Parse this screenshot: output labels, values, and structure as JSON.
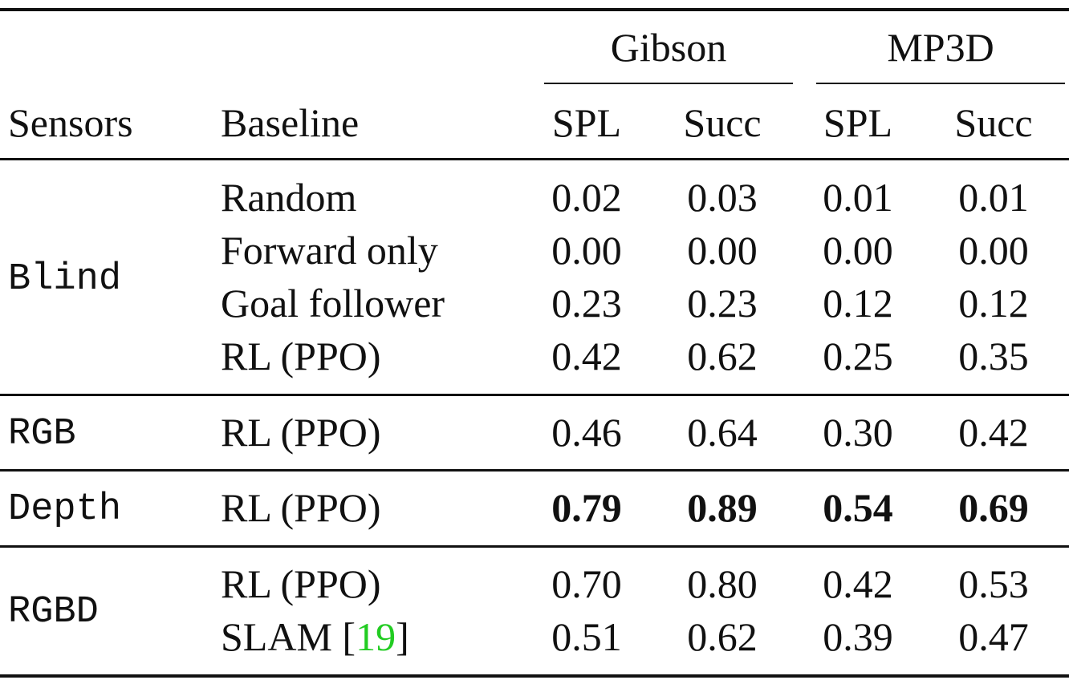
{
  "header": {
    "group1": "Gibson",
    "group2": "MP3D",
    "col_sensors": "Sensors",
    "col_baseline": "Baseline",
    "spl": "SPL",
    "succ": "Succ"
  },
  "groups": [
    {
      "sensor": "Blind",
      "rows": [
        {
          "baseline": "Random",
          "values": [
            "0.02",
            "0.03",
            "0.01",
            "0.01"
          ],
          "bold": false
        },
        {
          "baseline": "Forward only",
          "values": [
            "0.00",
            "0.00",
            "0.00",
            "0.00"
          ],
          "bold": false
        },
        {
          "baseline": "Goal follower",
          "values": [
            "0.23",
            "0.23",
            "0.12",
            "0.12"
          ],
          "bold": false
        },
        {
          "baseline": "RL (PPO)",
          "values": [
            "0.42",
            "0.62",
            "0.25",
            "0.35"
          ],
          "bold": false
        }
      ]
    },
    {
      "sensor": "RGB",
      "rows": [
        {
          "baseline": "RL (PPO)",
          "values": [
            "0.46",
            "0.64",
            "0.30",
            "0.42"
          ],
          "bold": false
        }
      ]
    },
    {
      "sensor": "Depth",
      "rows": [
        {
          "baseline": "RL (PPO)",
          "values": [
            "0.79",
            "0.89",
            "0.54",
            "0.69"
          ],
          "bold": true
        }
      ]
    },
    {
      "sensor": "RGBD",
      "rows": [
        {
          "baseline": "RL (PPO)",
          "values": [
            "0.70",
            "0.80",
            "0.42",
            "0.53"
          ],
          "bold": false
        },
        {
          "baseline": "SLAM [",
          "cite": "19",
          "cite_close": "]",
          "values": [
            "0.51",
            "0.62",
            "0.39",
            "0.47"
          ],
          "bold": false
        }
      ]
    }
  ],
  "chart_data": {
    "type": "table",
    "columns": [
      "Sensors",
      "Baseline",
      "Gibson SPL",
      "Gibson Succ",
      "MP3D SPL",
      "MP3D Succ"
    ],
    "rows": [
      [
        "Blind",
        "Random",
        0.02,
        0.03,
        0.01,
        0.01
      ],
      [
        "Blind",
        "Forward only",
        0.0,
        0.0,
        0.0,
        0.0
      ],
      [
        "Blind",
        "Goal follower",
        0.23,
        0.23,
        0.12,
        0.12
      ],
      [
        "Blind",
        "RL (PPO)",
        0.42,
        0.62,
        0.25,
        0.35
      ],
      [
        "RGB",
        "RL (PPO)",
        0.46,
        0.64,
        0.3,
        0.42
      ],
      [
        "Depth",
        "RL (PPO)",
        0.79,
        0.89,
        0.54,
        0.69
      ],
      [
        "RGBD",
        "RL (PPO)",
        0.7,
        0.8,
        0.42,
        0.53
      ],
      [
        "RGBD",
        "SLAM [19]",
        0.51,
        0.62,
        0.39,
        0.47
      ]
    ]
  }
}
